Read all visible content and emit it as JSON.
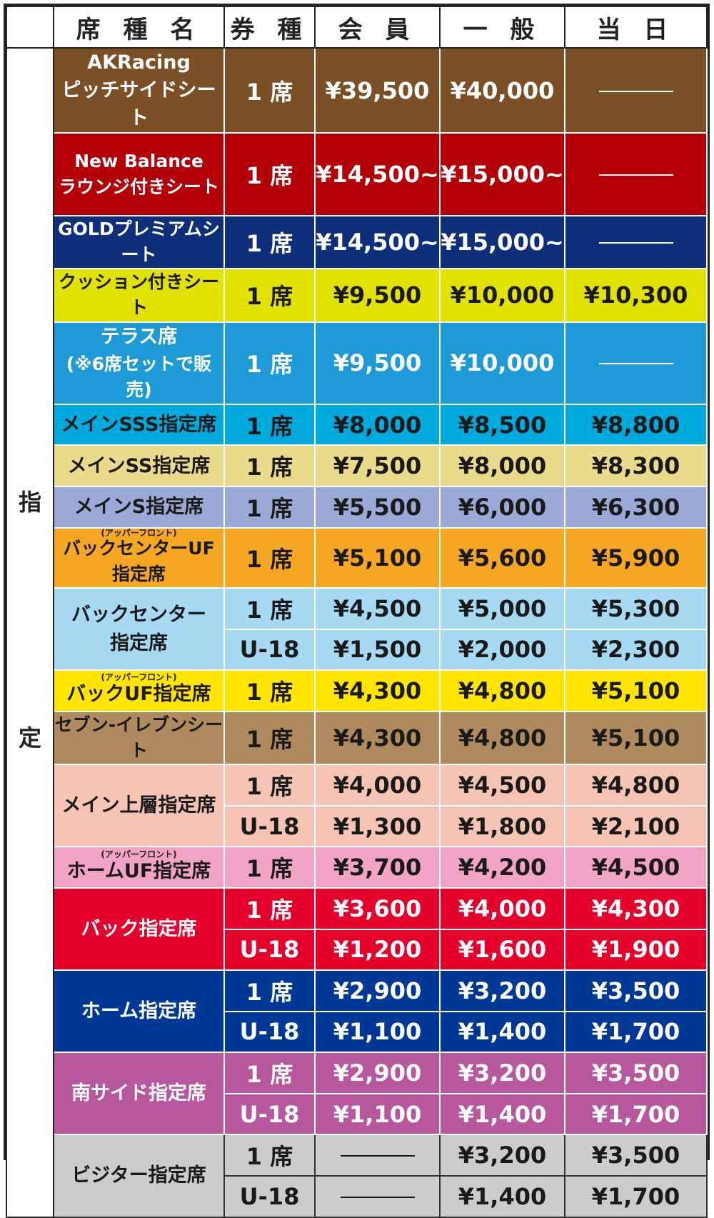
{
  "header": {
    "blank": "",
    "name": "席 種 名",
    "ticket_type": "券 種",
    "member": "会 員",
    "general": "一 般",
    "same_day": "当 日"
  },
  "side_label": [
    "指",
    "定"
  ],
  "dash": "—",
  "rows": [
    {
      "name": [
        "AKRacing",
        "ピッチサイドシート"
      ],
      "bg": "#7b5027",
      "fg": "#ffffff",
      "tall": true,
      "prices": [
        {
          "type": "1 席",
          "member": "¥39,500",
          "general": "¥40,000",
          "day": null
        }
      ]
    },
    {
      "name": [
        "New Balance",
        "ラウンジ付きシート"
      ],
      "bg": "#b30008",
      "fg": "#ffffff",
      "tall": true,
      "prices": [
        {
          "type": "1 席",
          "member": "¥14,500~",
          "general": "¥15,000~",
          "day": null
        }
      ]
    },
    {
      "name": [
        "GOLDプレミアムシート"
      ],
      "bg": "#0f2f7a",
      "fg": "#ffffff",
      "prices": [
        {
          "type": "1 席",
          "member": "¥14,500~",
          "general": "¥15,000~",
          "day": null
        }
      ]
    },
    {
      "name": [
        "クッション付きシート"
      ],
      "bg": "#e2e200",
      "fg": "#1a1a1a",
      "prices": [
        {
          "type": "1 席",
          "member": "¥9,500",
          "general": "¥10,000",
          "day": "¥10,300"
        }
      ]
    },
    {
      "name": [
        "テラス席",
        "(※6席セットで販売)"
      ],
      "bg": "#1e9bd7",
      "fg": "#ffffff",
      "tall": true,
      "prices": [
        {
          "type": "1 席",
          "member": "¥9,500",
          "general": "¥10,000",
          "day": null
        }
      ]
    },
    {
      "name": [
        "メインSSS指定席"
      ],
      "bg": "#00a9dc",
      "fg": "#1a1a1a",
      "prices": [
        {
          "type": "1 席",
          "member": "¥8,000",
          "general": "¥8,500",
          "day": "¥8,800"
        }
      ]
    },
    {
      "name": [
        "メインSS指定席"
      ],
      "bg": "#e9da8c",
      "fg": "#1a1a1a",
      "prices": [
        {
          "type": "1 席",
          "member": "¥7,500",
          "general": "¥8,000",
          "day": "¥8,300"
        }
      ]
    },
    {
      "name": [
        "メインS指定席"
      ],
      "bg": "#9ba9d7",
      "fg": "#1a1a1a",
      "prices": [
        {
          "type": "1 席",
          "member": "¥5,500",
          "general": "¥6,000",
          "day": "¥6,300"
        }
      ]
    },
    {
      "name": [
        "バックセンターUF指定席"
      ],
      "ruby": "(アッパーフロント)",
      "bg": "#f5a623",
      "fg": "#1a1a1a",
      "prices": [
        {
          "type": "1 席",
          "member": "¥5,100",
          "general": "¥5,600",
          "day": "¥5,900"
        }
      ]
    },
    {
      "name": [
        "バックセンター",
        "指定席"
      ],
      "bg": "#a7d9f2",
      "fg": "#1a1a1a",
      "prices": [
        {
          "type": "1 席",
          "member": "¥4,500",
          "general": "¥5,000",
          "day": "¥5,300"
        },
        {
          "type": "U-18",
          "member": "¥1,500",
          "general": "¥2,000",
          "day": "¥2,300"
        }
      ]
    },
    {
      "name": [
        "バックUF指定席"
      ],
      "ruby": "(アッパーフロント)",
      "bg": "#ffe500",
      "fg": "#1a1a1a",
      "prices": [
        {
          "type": "1 席",
          "member": "¥4,300",
          "general": "¥4,800",
          "day": "¥5,100"
        }
      ]
    },
    {
      "name": [
        "セブン-イレブンシート"
      ],
      "bg": "#b08a5f",
      "fg": "#1a1a1a",
      "prices": [
        {
          "type": "1 席",
          "member": "¥4,300",
          "general": "¥4,800",
          "day": "¥5,100"
        }
      ]
    },
    {
      "name": [
        "メイン上層指定席"
      ],
      "bg": "#f5c4b5",
      "fg": "#1a1a1a",
      "prices": [
        {
          "type": "1 席",
          "member": "¥4,000",
          "general": "¥4,500",
          "day": "¥4,800"
        },
        {
          "type": "U-18",
          "member": "¥1,300",
          "general": "¥1,800",
          "day": "¥2,100"
        }
      ]
    },
    {
      "name": [
        "ホームUF指定席"
      ],
      "ruby": "(アッパーフロント)",
      "bg": "#f2a4c7",
      "fg": "#1a1a1a",
      "prices": [
        {
          "type": "1 席",
          "member": "¥3,700",
          "general": "¥4,200",
          "day": "¥4,500"
        }
      ]
    },
    {
      "name": [
        "バック指定席"
      ],
      "bg": "#e4002b",
      "fg": "#ffffff",
      "prices": [
        {
          "type": "1 席",
          "member": "¥3,600",
          "general": "¥4,000",
          "day": "¥4,300"
        },
        {
          "type": "U-18",
          "member": "¥1,200",
          "general": "¥1,600",
          "day": "¥1,900"
        }
      ]
    },
    {
      "name": [
        "ホーム指定席"
      ],
      "bg": "#003896",
      "fg": "#ffffff",
      "prices": [
        {
          "type": "1 席",
          "member": "¥2,900",
          "general": "¥3,200",
          "day": "¥3,500"
        },
        {
          "type": "U-18",
          "member": "¥1,100",
          "general": "¥1,400",
          "day": "¥1,700"
        }
      ]
    },
    {
      "name": [
        "南サイド指定席"
      ],
      "bg": "#b7579d",
      "fg": "#ffffff",
      "prices": [
        {
          "type": "1 席",
          "member": "¥2,900",
          "general": "¥3,200",
          "day": "¥3,500"
        },
        {
          "type": "U-18",
          "member": "¥1,100",
          "general": "¥1,400",
          "day": "¥1,700"
        }
      ]
    },
    {
      "name": [
        "ビジター指定席"
      ],
      "bg": "#cccccc",
      "fg": "#1a1a1a",
      "dark": true,
      "prices": [
        {
          "type": "1 席",
          "member": null,
          "general": "¥3,200",
          "day": "¥3,500"
        },
        {
          "type": "U-18",
          "member": null,
          "general": "¥1,400",
          "day": "¥1,700"
        }
      ]
    }
  ]
}
